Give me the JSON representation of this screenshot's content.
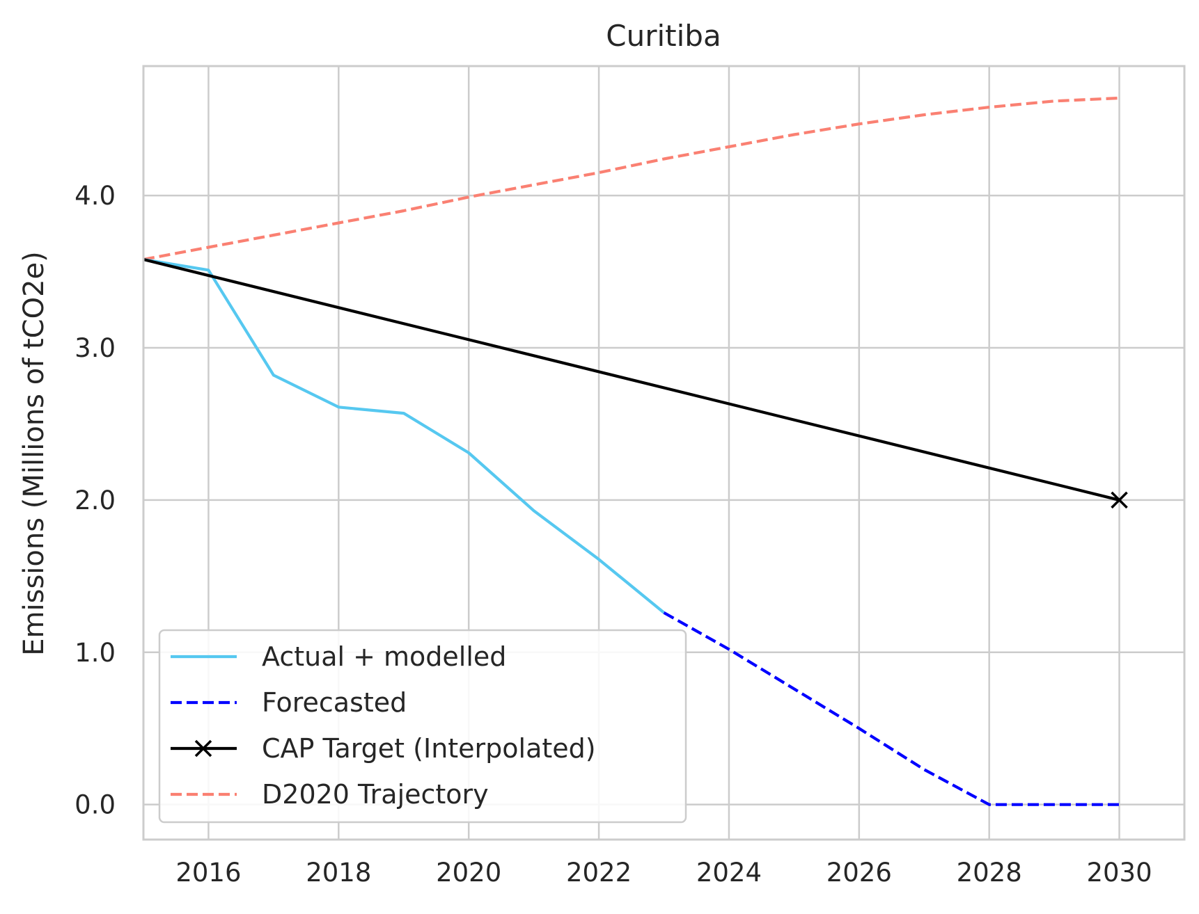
{
  "chart_data": {
    "type": "line",
    "title": "Curitiba",
    "xlabel": "",
    "ylabel": "Emissions (Millions of tCO2e)",
    "xlim": [
      2015,
      2031
    ],
    "ylim": [
      -0.23,
      4.85
    ],
    "x_ticks": [
      2016,
      2018,
      2020,
      2022,
      2024,
      2026,
      2028,
      2030
    ],
    "y_ticks": [
      0.0,
      1.0,
      2.0,
      3.0,
      4.0
    ],
    "y_tick_labels": [
      "0.0",
      "1.0",
      "2.0",
      "3.0",
      "4.0"
    ],
    "grid": true,
    "legend_position": "lower-left",
    "series": [
      {
        "name": "Actual + modelled",
        "color": "#56c8f0",
        "dash": "solid",
        "x": [
          2015,
          2016,
          2017,
          2018,
          2019,
          2020,
          2021,
          2022,
          2023
        ],
        "y": [
          3.58,
          3.51,
          2.82,
          2.61,
          2.57,
          2.31,
          1.93,
          1.61,
          1.26
        ]
      },
      {
        "name": "Forecasted",
        "color": "#0000ff",
        "dash": "dashed",
        "x": [
          2023,
          2024,
          2025,
          2026,
          2027,
          2028,
          2029,
          2030
        ],
        "y": [
          1.26,
          1.02,
          0.76,
          0.5,
          0.23,
          0.0,
          0.0,
          0.0
        ]
      },
      {
        "name": "CAP Target (Interpolated)",
        "color": "#000000",
        "dash": "solid",
        "marker_at_end": "x",
        "x": [
          2015,
          2030
        ],
        "y": [
          3.58,
          2.0
        ]
      },
      {
        "name": "D2020 Trajectory",
        "color": "#fa8072",
        "dash": "dashed",
        "x": [
          2015,
          2016,
          2017,
          2018,
          2019,
          2020,
          2021,
          2022,
          2023,
          2024,
          2025,
          2026,
          2027,
          2028,
          2029,
          2030
        ],
        "y": [
          3.58,
          3.66,
          3.74,
          3.82,
          3.9,
          3.99,
          4.07,
          4.15,
          4.24,
          4.32,
          4.4,
          4.47,
          4.53,
          4.58,
          4.62,
          4.64
        ]
      }
    ]
  }
}
